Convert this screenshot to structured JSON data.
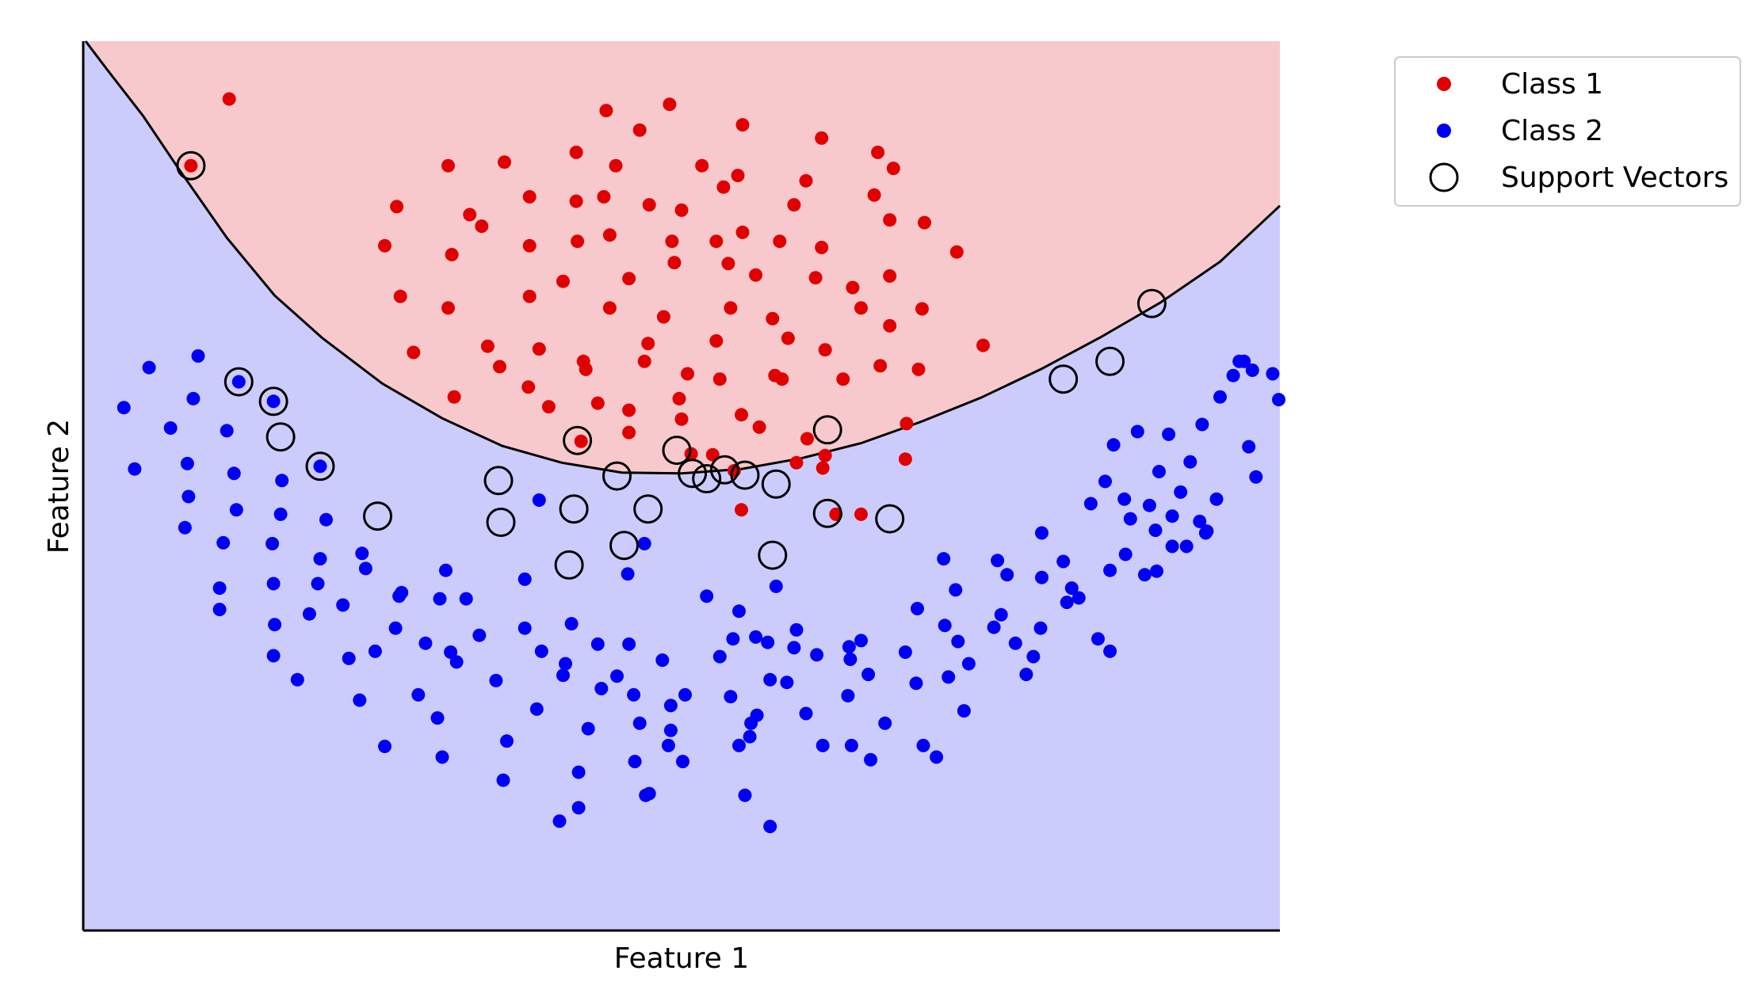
{
  "chart_data": {
    "type": "scatter",
    "title": "",
    "xlabel": "Feature 1",
    "ylabel": "Feature 2",
    "xlim": [
      0,
      100
    ],
    "ylim": [
      0,
      100
    ],
    "grid": false,
    "ticks": false,
    "legend_position": "outside-top-right",
    "region_colors": {
      "class1": "#f7c9cc",
      "class2": "#ccccfc"
    },
    "decision_boundary_color": "#000000",
    "series": [
      {
        "name": "Class 1",
        "color": "#e00000",
        "points": [
          [
            12.2,
            93.5
          ],
          [
            9.0,
            86.0
          ],
          [
            43.7,
            92.2
          ],
          [
            49.0,
            92.9
          ],
          [
            46.5,
            90.0
          ],
          [
            55.1,
            90.6
          ],
          [
            61.7,
            89.1
          ],
          [
            66.4,
            87.5
          ],
          [
            30.5,
            86.0
          ],
          [
            35.2,
            86.4
          ],
          [
            41.2,
            87.5
          ],
          [
            44.5,
            86.0
          ],
          [
            51.7,
            86.0
          ],
          [
            54.7,
            84.9
          ],
          [
            60.4,
            84.3
          ],
          [
            67.7,
            85.7
          ],
          [
            26.2,
            81.4
          ],
          [
            37.3,
            82.5
          ],
          [
            41.2,
            82.0
          ],
          [
            43.5,
            82.5
          ],
          [
            47.3,
            81.6
          ],
          [
            50.0,
            81.0
          ],
          [
            53.5,
            83.6
          ],
          [
            59.4,
            81.6
          ],
          [
            66.1,
            82.7
          ],
          [
            70.3,
            79.6
          ],
          [
            25.2,
            77.0
          ],
          [
            30.8,
            76.0
          ],
          [
            33.3,
            79.2
          ],
          [
            37.3,
            77.0
          ],
          [
            41.3,
            77.5
          ],
          [
            44.0,
            78.2
          ],
          [
            49.2,
            77.5
          ],
          [
            52.9,
            77.5
          ],
          [
            55.1,
            78.5
          ],
          [
            58.2,
            77.5
          ],
          [
            61.7,
            76.8
          ],
          [
            67.4,
            79.9
          ],
          [
            32.3,
            80.5
          ],
          [
            40.1,
            73.0
          ],
          [
            45.6,
            73.3
          ],
          [
            49.4,
            75.1
          ],
          [
            53.9,
            75.0
          ],
          [
            56.2,
            73.7
          ],
          [
            61.2,
            73.4
          ],
          [
            64.3,
            72.3
          ],
          [
            73.0,
            76.3
          ],
          [
            26.5,
            71.3
          ],
          [
            30.5,
            70.0
          ],
          [
            37.3,
            71.3
          ],
          [
            44.0,
            70.0
          ],
          [
            48.5,
            69.0
          ],
          [
            54.1,
            70.0
          ],
          [
            57.6,
            68.8
          ],
          [
            65.0,
            70.0
          ],
          [
            70.1,
            69.9
          ],
          [
            27.6,
            65.0
          ],
          [
            33.8,
            65.7
          ],
          [
            38.1,
            65.4
          ],
          [
            41.8,
            64.0
          ],
          [
            46.9,
            64.0
          ],
          [
            52.9,
            66.3
          ],
          [
            58.9,
            66.6
          ],
          [
            62.0,
            65.3
          ],
          [
            67.4,
            68.0
          ],
          [
            75.2,
            65.8
          ],
          [
            37.2,
            61.1
          ],
          [
            42.0,
            63.1
          ],
          [
            47.2,
            66.0
          ],
          [
            50.5,
            62.6
          ],
          [
            53.2,
            62.0
          ],
          [
            57.8,
            62.4
          ],
          [
            31.0,
            60.0
          ],
          [
            38.9,
            58.9
          ],
          [
            43.0,
            59.3
          ],
          [
            45.6,
            58.5
          ],
          [
            49.8,
            59.8
          ],
          [
            55.0,
            58.0
          ],
          [
            58.4,
            62.0
          ],
          [
            63.5,
            62.0
          ],
          [
            66.6,
            63.5
          ],
          [
            69.8,
            63.1
          ],
          [
            34.8,
            63.4
          ],
          [
            41.6,
            55.0
          ],
          [
            45.6,
            56.0
          ],
          [
            60.5,
            55.3
          ],
          [
            68.8,
            57.0
          ],
          [
            54.4,
            51.7
          ],
          [
            62.0,
            53.4
          ],
          [
            50.8,
            53.6
          ],
          [
            55.0,
            47.3
          ],
          [
            52.6,
            53.5
          ],
          [
            59.6,
            52.6
          ],
          [
            61.8,
            52.0
          ],
          [
            68.7,
            53.0
          ],
          [
            65.0,
            46.8
          ],
          [
            62.9,
            46.8
          ],
          [
            50.0,
            57.5
          ],
          [
            56.5,
            56.6
          ],
          [
            67.4,
            73.6
          ]
        ]
      },
      {
        "name": "Class 2",
        "color": "#0000f5",
        "points": [
          [
            5.5,
            63.3
          ],
          [
            9.6,
            64.6
          ],
          [
            13.0,
            61.7
          ],
          [
            15.9,
            59.5
          ],
          [
            3.4,
            58.8
          ],
          [
            7.3,
            56.5
          ],
          [
            9.2,
            59.8
          ],
          [
            12.0,
            56.2
          ],
          [
            4.3,
            51.9
          ],
          [
            8.7,
            52.5
          ],
          [
            12.6,
            51.4
          ],
          [
            16.6,
            50.6
          ],
          [
            19.8,
            52.2
          ],
          [
            8.8,
            48.8
          ],
          [
            12.8,
            47.3
          ],
          [
            16.5,
            46.8
          ],
          [
            20.3,
            46.2
          ],
          [
            8.5,
            45.3
          ],
          [
            11.7,
            43.6
          ],
          [
            15.8,
            43.5
          ],
          [
            19.8,
            41.8
          ],
          [
            23.3,
            42.4
          ],
          [
            11.4,
            38.5
          ],
          [
            15.9,
            39.0
          ],
          [
            19.6,
            39.0
          ],
          [
            23.6,
            40.7
          ],
          [
            26.4,
            37.6
          ],
          [
            30.3,
            40.5
          ],
          [
            16.0,
            34.4
          ],
          [
            18.9,
            35.6
          ],
          [
            21.7,
            36.6
          ],
          [
            26.6,
            38.0
          ],
          [
            29.8,
            37.3
          ],
          [
            11.4,
            36.1
          ],
          [
            15.9,
            30.9
          ],
          [
            17.9,
            28.2
          ],
          [
            22.2,
            30.6
          ],
          [
            24.4,
            31.4
          ],
          [
            26.1,
            34.0
          ],
          [
            28.6,
            32.3
          ],
          [
            31.2,
            30.2
          ],
          [
            23.1,
            25.9
          ],
          [
            25.2,
            20.7
          ],
          [
            28.0,
            26.5
          ],
          [
            29.6,
            23.9
          ],
          [
            30.7,
            31.3
          ],
          [
            32.0,
            37.3
          ],
          [
            30.0,
            19.5
          ],
          [
            33.1,
            33.2
          ],
          [
            34.5,
            28.1
          ],
          [
            35.4,
            21.3
          ],
          [
            36.9,
            39.5
          ],
          [
            36.9,
            34.0
          ],
          [
            35.1,
            16.9
          ],
          [
            37.9,
            24.9
          ],
          [
            38.3,
            31.4
          ],
          [
            40.1,
            28.7
          ],
          [
            40.8,
            34.5
          ],
          [
            41.4,
            17.8
          ],
          [
            41.4,
            13.8
          ],
          [
            43.3,
            27.2
          ],
          [
            39.8,
            12.3
          ],
          [
            38.1,
            48.4
          ],
          [
            40.3,
            30.0
          ],
          [
            42.2,
            22.7
          ],
          [
            43.0,
            32.2
          ],
          [
            44.6,
            28.6
          ],
          [
            45.5,
            40.1
          ],
          [
            46.0,
            26.5
          ],
          [
            45.6,
            32.2
          ],
          [
            46.1,
            19.0
          ],
          [
            46.5,
            23.3
          ],
          [
            47.0,
            15.2
          ],
          [
            47.3,
            15.4
          ],
          [
            46.9,
            43.5
          ],
          [
            50.3,
            26.5
          ],
          [
            48.9,
            20.8
          ],
          [
            49.1,
            22.5
          ],
          [
            49.1,
            25.3
          ],
          [
            48.4,
            30.4
          ],
          [
            50.1,
            19.0
          ],
          [
            52.1,
            37.6
          ],
          [
            53.2,
            30.8
          ],
          [
            54.1,
            26.3
          ],
          [
            54.3,
            32.8
          ],
          [
            54.8,
            20.8
          ],
          [
            54.8,
            35.9
          ],
          [
            55.7,
            21.8
          ],
          [
            55.3,
            15.2
          ],
          [
            55.8,
            23.3
          ],
          [
            56.2,
            33.0
          ],
          [
            56.3,
            24.2
          ],
          [
            57.4,
            28.2
          ],
          [
            57.4,
            11.7
          ],
          [
            57.9,
            38.7
          ],
          [
            57.2,
            32.4
          ],
          [
            58.8,
            27.9
          ],
          [
            59.6,
            33.8
          ],
          [
            59.4,
            31.8
          ],
          [
            60.4,
            24.4
          ],
          [
            61.3,
            31.0
          ],
          [
            61.8,
            20.8
          ],
          [
            63.9,
            26.4
          ],
          [
            64.1,
            30.5
          ],
          [
            64.0,
            31.9
          ],
          [
            64.2,
            20.8
          ],
          [
            65.0,
            32.6
          ],
          [
            65.6,
            28.8
          ],
          [
            65.8,
            19.2
          ],
          [
            67.0,
            23.3
          ],
          [
            68.7,
            31.3
          ],
          [
            69.6,
            27.8
          ],
          [
            70.2,
            20.8
          ],
          [
            71.3,
            19.5
          ],
          [
            72.0,
            34.3
          ],
          [
            73.1,
            32.5
          ],
          [
            74.0,
            30.0
          ],
          [
            72.3,
            28.5
          ],
          [
            73.6,
            24.7
          ],
          [
            76.4,
            41.6
          ],
          [
            76.7,
            35.5
          ],
          [
            77.9,
            32.3
          ],
          [
            78.8,
            28.8
          ],
          [
            79.4,
            30.8
          ],
          [
            80.1,
            39.7
          ],
          [
            80.1,
            44.7
          ],
          [
            82.2,
            36.9
          ],
          [
            82.6,
            38.5
          ],
          [
            84.8,
            32.8
          ],
          [
            85.4,
            50.5
          ],
          [
            85.8,
            40.5
          ],
          [
            87.0,
            48.5
          ],
          [
            87.1,
            42.3
          ],
          [
            87.5,
            46.3
          ],
          [
            89.1,
            47.8
          ],
          [
            89.6,
            45.0
          ],
          [
            89.9,
            51.6
          ],
          [
            90.7,
            55.8
          ],
          [
            92.5,
            52.7
          ],
          [
            93.5,
            56.9
          ],
          [
            94.7,
            48.5
          ],
          [
            96.1,
            62.4
          ],
          [
            96.6,
            64.0
          ],
          [
            97.4,
            54.4
          ],
          [
            98.0,
            51.0
          ],
          [
            95.0,
            60.0
          ],
          [
            97.0,
            64.0
          ],
          [
            99.4,
            62.6
          ],
          [
            99.9,
            59.7
          ],
          [
            97.7,
            63.0
          ],
          [
            93.3,
            46.0
          ],
          [
            91.7,
            49.3
          ],
          [
            88.1,
            56.1
          ],
          [
            86.1,
            54.6
          ],
          [
            88.7,
            40.0
          ],
          [
            91.0,
            46.6
          ],
          [
            93.8,
            44.7
          ],
          [
            92.2,
            43.2
          ],
          [
            93.9,
            44.9
          ],
          [
            85.8,
            31.4
          ],
          [
            89.7,
            40.4
          ],
          [
            91.0,
            43.2
          ],
          [
            83.2,
            37.4
          ],
          [
            84.2,
            48.0
          ],
          [
            81.9,
            41.5
          ],
          [
            80.0,
            34.0
          ],
          [
            77.2,
            40.0
          ],
          [
            76.1,
            34.1
          ],
          [
            72.9,
            38.3
          ],
          [
            71.9,
            41.8
          ],
          [
            69.7,
            36.2
          ]
        ]
      }
    ],
    "support_vectors": {
      "name": "Support Vectors",
      "points": [
        [
          9.0,
          86.0
        ],
        [
          13.0,
          61.7
        ],
        [
          15.9,
          59.5
        ],
        [
          16.5,
          55.5
        ],
        [
          19.8,
          52.2
        ],
        [
          24.6,
          46.6
        ],
        [
          34.7,
          50.6
        ],
        [
          34.9,
          45.9
        ],
        [
          40.6,
          41.1
        ],
        [
          41.0,
          47.4
        ],
        [
          41.3,
          55.1
        ],
        [
          45.2,
          43.3
        ],
        [
          44.6,
          51.1
        ],
        [
          47.2,
          47.4
        ],
        [
          49.6,
          54.0
        ],
        [
          50.9,
          51.4
        ],
        [
          52.1,
          50.8
        ],
        [
          53.6,
          51.8
        ],
        [
          55.3,
          51.2
        ],
        [
          57.6,
          42.2
        ],
        [
          57.9,
          50.2
        ],
        [
          62.2,
          46.9
        ],
        [
          62.2,
          56.3
        ],
        [
          67.4,
          46.3
        ],
        [
          81.9,
          62.0
        ],
        [
          85.8,
          64.0
        ],
        [
          89.3,
          70.5
        ]
      ]
    }
  },
  "legend": {
    "items": [
      {
        "label": "Class 1",
        "marker": "dot",
        "color": "#e00000"
      },
      {
        "label": "Class 2",
        "marker": "dot",
        "color": "#0000f5"
      },
      {
        "label": "Support Vectors",
        "marker": "ring",
        "color": "#000000"
      }
    ]
  }
}
